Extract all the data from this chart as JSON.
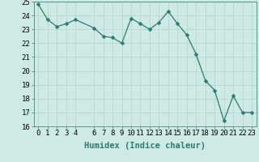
{
  "x": [
    0,
    1,
    2,
    3,
    4,
    6,
    7,
    8,
    9,
    10,
    11,
    12,
    13,
    14,
    15,
    16,
    17,
    18,
    19,
    20,
    21,
    22,
    23
  ],
  "y": [
    24.8,
    23.7,
    23.2,
    23.4,
    23.7,
    23.1,
    22.5,
    22.4,
    22.0,
    23.8,
    23.4,
    23.0,
    23.5,
    24.3,
    23.4,
    22.6,
    21.2,
    19.3,
    18.6,
    16.4,
    18.2,
    17.0,
    17.0
  ],
  "line_color": "#2e7b6e",
  "marker": "D",
  "marker_size": 2.5,
  "bg_color": "#ceeae6",
  "grid_color": "#b8d4d0",
  "xlabel": "Humidex (Indice chaleur)",
  "ylim": [
    16,
    25
  ],
  "xlim": [
    -0.5,
    23.5
  ],
  "yticks": [
    16,
    17,
    18,
    19,
    20,
    21,
    22,
    23,
    24,
    25
  ],
  "xticks": [
    0,
    1,
    2,
    3,
    4,
    6,
    7,
    8,
    9,
    10,
    11,
    12,
    13,
    14,
    15,
    16,
    17,
    18,
    19,
    20,
    21,
    22,
    23
  ],
  "tick_label_fontsize": 6.5,
  "xlabel_fontsize": 7.5
}
